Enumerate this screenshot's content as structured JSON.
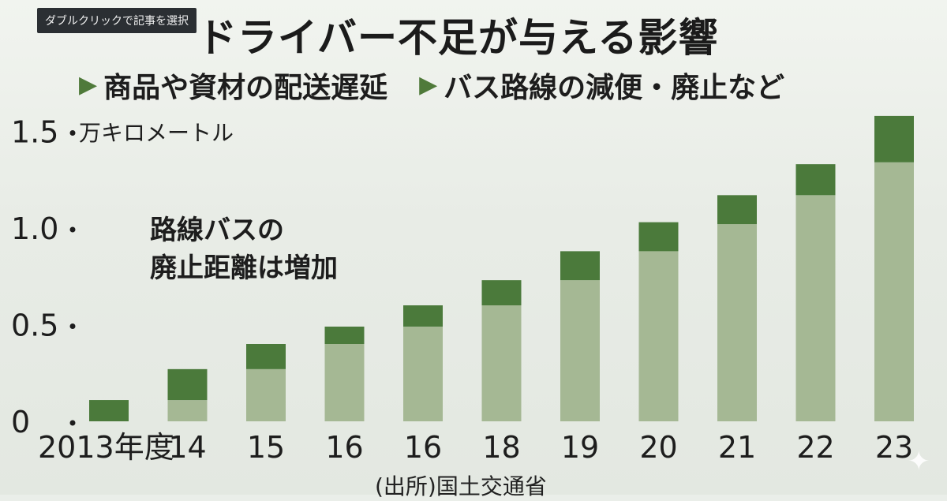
{
  "tooltip": "ダブルクリックで記事を選択",
  "header": {
    "title": "ドライバー不足が与える影響",
    "items": [
      "商品や資材の配送遅延",
      "バス路線の減便・廃止など"
    ]
  },
  "annotation": "路線バスの\n廃止距離は増加",
  "source": "(出所)国土交通省",
  "colors": {
    "dark_green": "#4b7a3b",
    "light_green": "#a5b894",
    "triangle": "#4f7a3a"
  },
  "chart_data": {
    "type": "bar",
    "stacked": true,
    "unit": "万キロメートル",
    "categories": [
      "2013年度",
      "14",
      "15",
      "16",
      "16",
      "18",
      "19",
      "20",
      "21",
      "22",
      "23"
    ],
    "series": [
      {
        "values": [
          0.0,
          0.11,
          0.27,
          0.4,
          0.49,
          0.6,
          0.73,
          0.88,
          1.02,
          1.17,
          1.34
        ]
      },
      {
        "values": [
          0.11,
          0.16,
          0.13,
          0.09,
          0.11,
          0.13,
          0.15,
          0.15,
          0.15,
          0.16,
          0.24
        ]
      }
    ],
    "yticks": [
      "0",
      "0.5",
      "1.0",
      "1.5"
    ],
    "ylim": [
      0,
      1.6
    ]
  }
}
